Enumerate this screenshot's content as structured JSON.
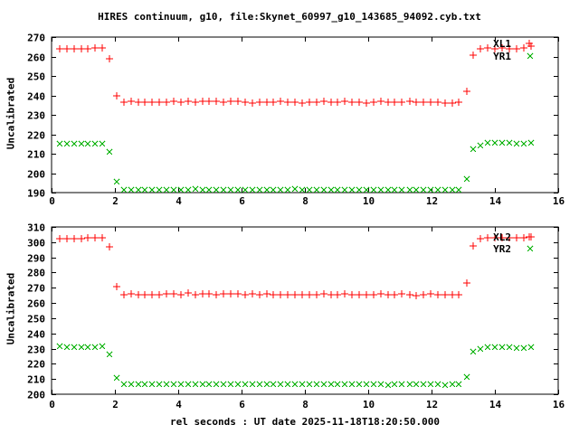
{
  "title": "HIRES continuum, g10, file:Skynet_60997_g10_143685_94092.cyb.txt",
  "xlabel": "rel seconds : UT date 2025-11-18T18:20:50.000",
  "colors": {
    "axis": "#000000",
    "background": "#ffffff",
    "red": "#ff0000",
    "green": "#00b000"
  },
  "chart_data": [
    {
      "type": "scatter",
      "panel": "top",
      "ylabel": "Uncalibrated",
      "ylim": [
        190,
        270
      ],
      "yticks": [
        190,
        200,
        210,
        220,
        230,
        240,
        250,
        260,
        270
      ],
      "xlim": [
        0,
        16
      ],
      "xticks": [
        0,
        2,
        4,
        6,
        8,
        10,
        12,
        14,
        16
      ],
      "grid": false,
      "legend_position": "top-right-inside",
      "x": [
        0.25,
        0.48,
        0.7,
        0.93,
        1.15,
        1.38,
        1.6,
        1.83,
        2.05,
        2.28,
        2.5,
        2.73,
        2.95,
        3.18,
        3.41,
        3.63,
        3.86,
        4.08,
        4.31,
        4.53,
        4.76,
        4.98,
        5.21,
        5.43,
        5.66,
        5.89,
        6.11,
        6.34,
        6.56,
        6.79,
        7.01,
        7.24,
        7.46,
        7.69,
        7.91,
        8.14,
        8.36,
        8.59,
        8.82,
        9.04,
        9.27,
        9.49,
        9.72,
        9.94,
        10.17,
        10.39,
        10.62,
        10.84,
        11.07,
        11.3,
        11.52,
        11.75,
        11.97,
        12.2,
        12.42,
        12.65,
        12.87,
        13.1,
        13.32,
        13.55,
        13.77,
        14.0,
        14.23,
        14.45,
        14.68,
        14.9,
        15.13
      ],
      "series": [
        {
          "name": "XL1",
          "marker": "plus",
          "color": "#ff0000",
          "values": [
            264,
            264,
            264,
            264,
            264,
            264.5,
            264.5,
            258.8,
            240,
            236.4,
            236.8,
            236.6,
            236.4,
            236.6,
            236.4,
            236.6,
            236.8,
            236.6,
            236.8,
            236.4,
            236.8,
            237.0,
            236.8,
            236.6,
            237.0,
            236.8,
            236.6,
            236.2,
            236.4,
            236.6,
            236.4,
            236.8,
            236.6,
            236.4,
            236.2,
            236.4,
            236.6,
            236.8,
            236.4,
            236.6,
            236.8,
            236.6,
            236.4,
            236.2,
            236.6,
            236.8,
            236.6,
            236.4,
            236.6,
            236.8,
            236.6,
            236.4,
            236.6,
            236.4,
            236.2,
            236.0,
            236.4,
            242.0,
            260.8,
            264.0,
            264.5,
            264.0,
            264.2,
            264.0,
            264.0,
            264.2,
            265.3
          ]
        },
        {
          "name": "YR1",
          "marker": "cross",
          "color": "#00b000",
          "values": [
            215.3,
            215,
            215,
            215,
            215.3,
            215.3,
            215.3,
            210.8,
            195.5,
            191.5,
            191.3,
            191.4,
            191.3,
            191.5,
            191.4,
            191.3,
            191.5,
            191.6,
            191.4,
            191.9,
            191.6,
            191.4,
            191.5,
            191.3,
            191.6,
            191.5,
            191.4,
            191.6,
            191.3,
            191.5,
            191.6,
            191.4,
            191.5,
            191.7,
            191.4,
            191.3,
            191.5,
            191.6,
            191.4,
            191.2,
            191.5,
            191.4,
            191.6,
            191.3,
            191.5,
            191.4,
            191.3,
            191.5,
            191.6,
            191.4,
            191.5,
            191.3,
            191.6,
            191.4,
            191.2,
            191.4,
            191.6,
            196.9,
            212.3,
            214.3,
            215.4,
            215.5,
            215.4,
            215.5,
            215.0,
            215.0,
            215.4
          ]
        }
      ]
    },
    {
      "type": "scatter",
      "panel": "bottom",
      "ylabel": "Uncalibrated",
      "ylim": [
        200,
        310
      ],
      "yticks": [
        200,
        210,
        220,
        230,
        240,
        250,
        260,
        270,
        280,
        290,
        300,
        310
      ],
      "xlim": [
        0,
        16
      ],
      "xticks": [
        0,
        2,
        4,
        6,
        8,
        10,
        12,
        14,
        16
      ],
      "grid": false,
      "legend_position": "top-right-inside",
      "x": [
        0.25,
        0.48,
        0.7,
        0.93,
        1.15,
        1.38,
        1.6,
        1.83,
        2.05,
        2.28,
        2.5,
        2.73,
        2.95,
        3.18,
        3.41,
        3.63,
        3.86,
        4.08,
        4.31,
        4.53,
        4.76,
        4.98,
        5.21,
        5.43,
        5.66,
        5.89,
        6.11,
        6.34,
        6.56,
        6.79,
        7.01,
        7.24,
        7.46,
        7.69,
        7.91,
        8.14,
        8.36,
        8.59,
        8.82,
        9.04,
        9.27,
        9.49,
        9.72,
        9.94,
        10.17,
        10.39,
        10.62,
        10.84,
        11.07,
        11.3,
        11.52,
        11.75,
        11.97,
        12.2,
        12.42,
        12.65,
        12.87,
        13.1,
        13.32,
        13.55,
        13.77,
        14.0,
        14.23,
        14.45,
        14.68,
        14.9,
        15.13
      ],
      "series": [
        {
          "name": "XL2",
          "marker": "plus",
          "color": "#ff0000",
          "values": [
            302.2,
            302.5,
            302.3,
            302.5,
            303,
            302.8,
            303,
            296.7,
            271,
            265.3,
            265.8,
            265.6,
            265.4,
            265.6,
            265.5,
            265.8,
            266.0,
            265.7,
            266.3,
            265.6,
            266.0,
            265.8,
            265.6,
            266.0,
            265.8,
            265.9,
            265.6,
            265.8,
            265.7,
            265.9,
            265.6,
            265.4,
            265.7,
            265.5,
            265.4,
            265.5,
            265.6,
            265.8,
            265.5,
            265.7,
            265.9,
            265.6,
            265.5,
            265.3,
            265.6,
            265.8,
            265.6,
            265.5,
            265.8,
            265.4,
            265.0,
            265.6,
            265.8,
            265.5,
            265.4,
            265.2,
            265.6,
            273.0,
            297.8,
            302.5,
            303.0,
            302.8,
            302.8,
            303.0,
            302.6,
            303.0,
            303.5
          ]
        },
        {
          "name": "YR2",
          "marker": "cross",
          "color": "#00b000",
          "values": [
            231.5,
            231,
            231,
            231,
            231.2,
            231,
            231.5,
            226,
            210.5,
            206.8,
            206.4,
            206.6,
            206.5,
            206.7,
            206.5,
            206.4,
            206.7,
            206.5,
            206.8,
            206.4,
            206.6,
            206.7,
            206.5,
            206.6,
            206.8,
            206.5,
            206.7,
            206.4,
            206.6,
            206.5,
            206.7,
            206.6,
            206.4,
            206.7,
            206.5,
            206.3,
            206.6,
            206.7,
            206.5,
            206.4,
            206.6,
            206.5,
            206.7,
            206.3,
            206.6,
            206.4,
            206.2,
            206.5,
            206.7,
            206.5,
            206.6,
            206.3,
            206.6,
            206.4,
            206.1,
            206.4,
            206.6,
            211.5,
            228.0,
            229.5,
            231.0,
            231.0,
            230.8,
            231.0,
            230.5,
            230.5,
            231.0
          ]
        }
      ]
    }
  ]
}
